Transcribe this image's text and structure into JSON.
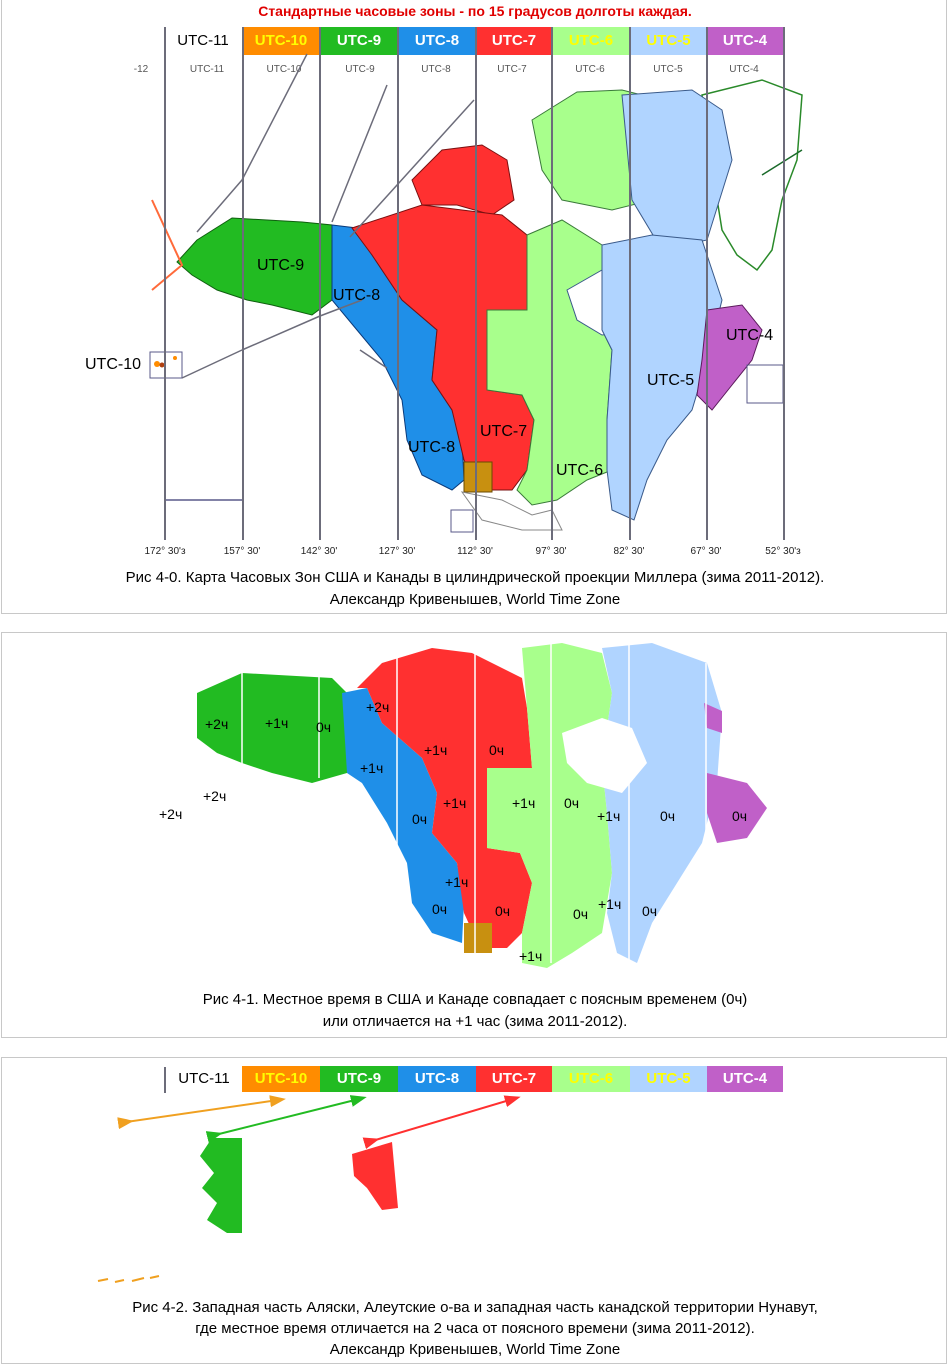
{
  "figure0": {
    "headline": "Стандартные часовые зоны - по 15 градусов долготы каждая.",
    "zones": [
      {
        "label": "UTC-11",
        "color": "#ffffff",
        "text_color": "#000000"
      },
      {
        "label": "UTC-10",
        "color": "#ff8c00",
        "text_color": "#ffff00"
      },
      {
        "label": "UTC-9",
        "color": "#22bb22",
        "text_color": "#ffffff"
      },
      {
        "label": "UTC-8",
        "color": "#1f8fe8",
        "text_color": "#ffffff"
      },
      {
        "label": "UTC-7",
        "color": "#ff3030",
        "text_color": "#ffffff"
      },
      {
        "label": "UTC-6",
        "color": "#a8ff8c",
        "text_color": "#ffff00"
      },
      {
        "label": "UTC-5",
        "color": "#b0d4ff",
        "text_color": "#ffff00"
      },
      {
        "label": "UTC-4",
        "color": "#c060c8",
        "text_color": "#ffffff"
      }
    ],
    "sub_labels": [
      "-12",
      "UTC-11",
      "UTC-10",
      "UTC-9",
      "UTC-8",
      "UTC-7",
      "UTC-6",
      "UTC-5",
      "UTC-4"
    ],
    "longitudes": [
      "172° 30'з",
      "157° 30'",
      "142° 30'",
      "127° 30'",
      "112° 30'",
      "97° 30'",
      "82° 30'",
      "67° 30'",
      "52° 30'з"
    ],
    "map_labels": {
      "utc9": "UTC-9",
      "utc8_north": "UTC-8",
      "utc10": "UTC-10",
      "utc4": "UTC-4",
      "utc5": "UTC-5",
      "utc8_south": "UTC-8",
      "utc7": "UTC-7",
      "utc6": "UTC-6"
    },
    "caption_line1": "Рис 4-0.  Карта Часовых Зон США и Канады в цилиндрической проекции Миллера (зима 2011-2012).",
    "caption_line2": "Александр Кривенышев, World Time Zone"
  },
  "figure1": {
    "hour_labels": {
      "alaska_w": "+2ч",
      "alaska_c": "+1ч",
      "alaska_e": "0ч",
      "aleut_1": "+2ч",
      "aleut_2": "+2ч",
      "nunavut_w": "+2ч",
      "bc_n": "+1ч",
      "nwt": "+1ч",
      "nwt_e": "0ч",
      "bc": "0ч",
      "alberta": "+1ч",
      "manitoba": "+1ч",
      "ontario": "0ч",
      "quebec_w": "+1ч",
      "quebec": "0ч",
      "atlantic": "0ч",
      "idaho": "+1ч",
      "calif": "0ч",
      "colorado": "0ч",
      "midwest": "0ч",
      "ohio": "+1ч",
      "east": "0ч",
      "texas": "+1ч"
    },
    "caption_line1": "Рис 4-1. Местное время в США и Канаде совпадает с поясным временем (0ч)",
    "caption_line2": "или отличается на +1 час  (зима 2011-2012)."
  },
  "figure2": {
    "zones": [
      "UTC-11",
      "UTC-10",
      "UTC-9",
      "UTC-8",
      "UTC-7",
      "UTC-6",
      "UTC-5",
      "UTC-4"
    ],
    "caption_line1": "Рис 4-2.  Западная часть Аляски, Алеутские о-ва и западная часть канадской территории Нунавут,",
    "caption_line2": "где местное время отличается на 2 часа от поясного времени (зима 2011-2012).",
    "caption_line3": "Александр Кривенышев, World Time Zone"
  }
}
